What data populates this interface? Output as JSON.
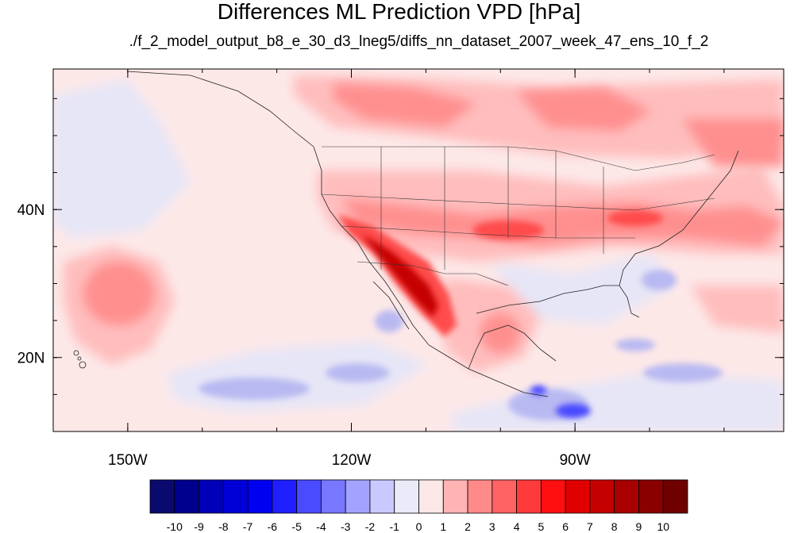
{
  "title": "Differences ML Prediction VPD [hPa]",
  "subtitle": "./f_2_model_output_b8_e_30_d3_lneg5/diffs_nn_dataset_2007_week_47_ens_10_f_2",
  "map": {
    "lon_range": [
      -160,
      -62
    ],
    "lat_range": [
      10,
      59
    ],
    "lon_ticks": [
      {
        "value": -150,
        "label": "150W"
      },
      {
        "value": -120,
        "label": "120W"
      },
      {
        "value": -90,
        "label": "90W"
      }
    ],
    "lat_ticks": [
      {
        "value": 40,
        "label": "40N"
      },
      {
        "value": 20,
        "label": "20N"
      }
    ],
    "background_color": "#fde8e8"
  },
  "colorbar": {
    "labels": [
      "-10",
      "-9",
      "-8",
      "-7",
      "-6",
      "-5",
      "-4",
      "-3",
      "-2",
      "-1",
      "0",
      "1",
      "2",
      "3",
      "4",
      "5",
      "6",
      "7",
      "8",
      "9",
      "10"
    ],
    "colors": [
      "#0a0a6e",
      "#00008f",
      "#0000b8",
      "#0000d6",
      "#0000f0",
      "#1f1fff",
      "#4a4aff",
      "#7777ff",
      "#a3a3ff",
      "#c9c9ff",
      "#eaeaf8",
      "#fde8e8",
      "#ffb3b3",
      "#ff8a8a",
      "#ff6262",
      "#ff3a3a",
      "#ff0f0f",
      "#e00000",
      "#c40000",
      "#a80000",
      "#8a0000",
      "#6e0000"
    ]
  }
}
